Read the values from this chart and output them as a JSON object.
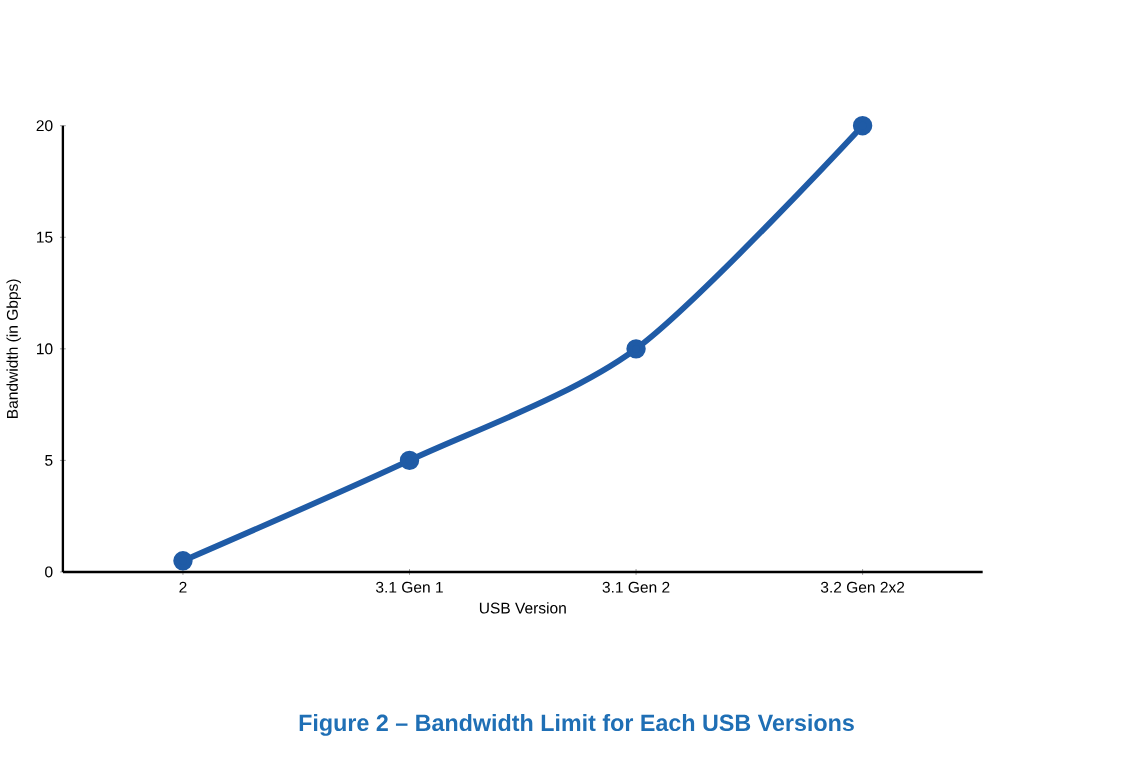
{
  "chart_data": {
    "type": "line",
    "title": "Figure 2 – Bandwidth Limit for Each USB Versions",
    "xlabel": "USB Version",
    "ylabel": "Bandwidth (in Gbps)",
    "categories": [
      "2",
      "3.1 Gen 1",
      "3.1 Gen 2",
      "3.2 Gen 2x2"
    ],
    "values": [
      0.5,
      5,
      10,
      20
    ],
    "color": "#1f5ba6",
    "marker": "circle",
    "line_style": "solid",
    "ylim": [
      0,
      20
    ],
    "yticks": [
      0,
      5,
      10,
      15,
      20
    ]
  }
}
